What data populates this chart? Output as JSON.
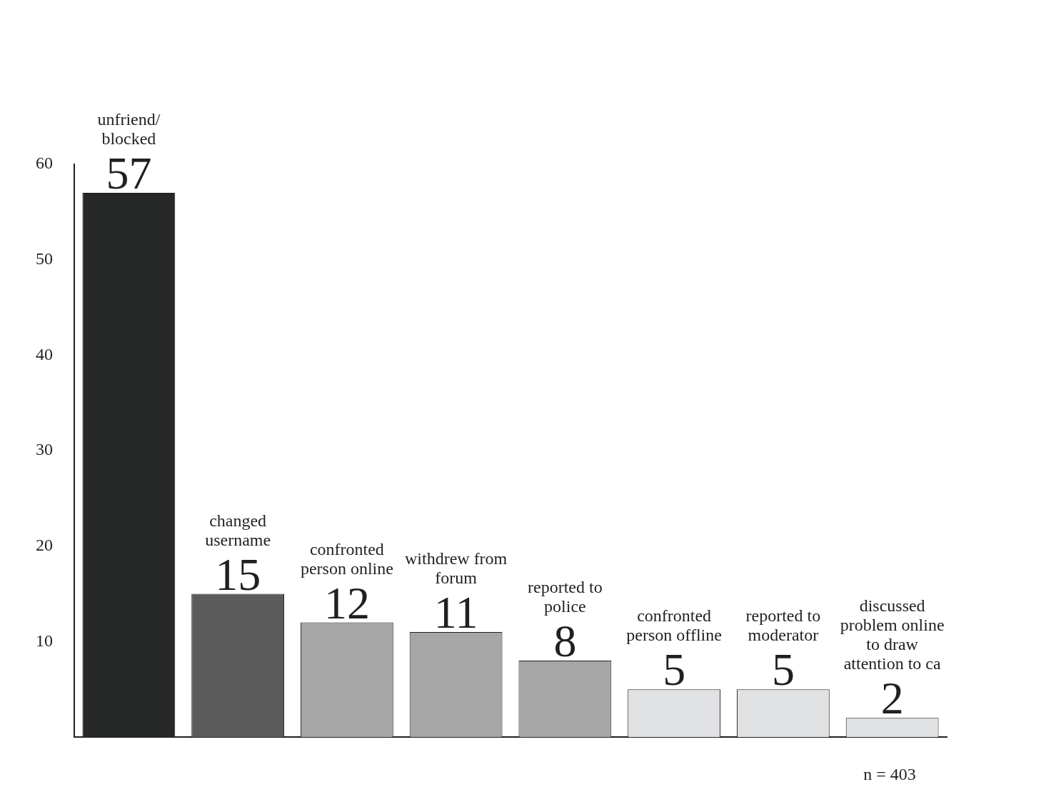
{
  "chart_data": {
    "type": "bar",
    "categories": [
      "unfriend/ blocked",
      "changed username",
      "confronted person online",
      "withdrew from forum",
      "reported to police",
      "confronted person offline",
      "reported to moderator",
      "discussed problem online to draw attention to ca"
    ],
    "values": [
      57,
      15,
      12,
      11,
      8,
      5,
      5,
      2
    ],
    "colors": [
      "#262828",
      "#5b5b5b",
      "#a6a6a6",
      "#a6a6a6",
      "#a6a6a6",
      "#e0e1e3",
      "#e0e1e3",
      "#e0e1e3"
    ],
    "ylim": [
      0,
      60
    ],
    "yticks": [
      10,
      20,
      30,
      40,
      50,
      60
    ],
    "grid": false,
    "tick_labels": "y",
    "data_labels": true,
    "annotations": [
      "n = 403"
    ]
  }
}
